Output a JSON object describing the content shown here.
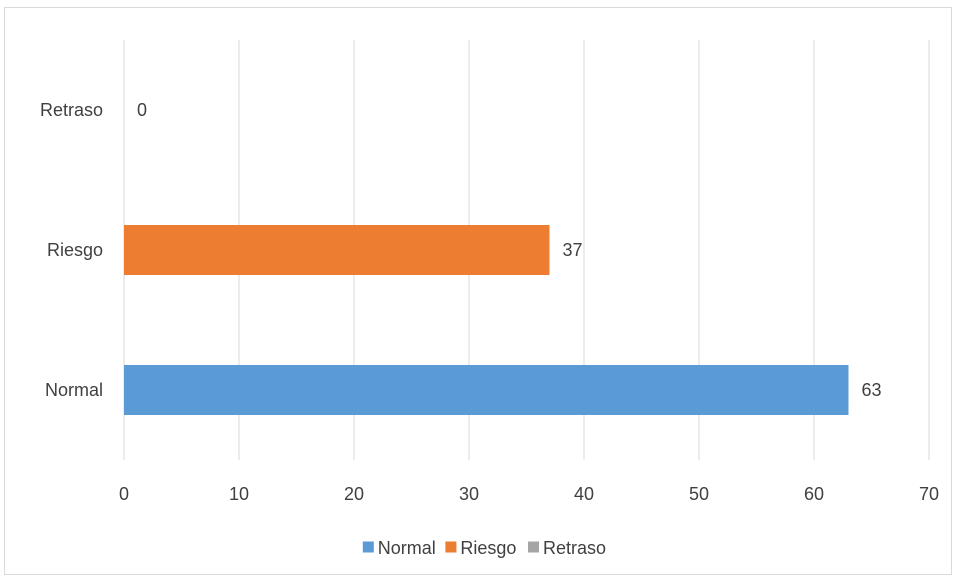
{
  "chart_data": {
    "type": "bar",
    "orientation": "horizontal",
    "categories": [
      "Normal",
      "Riesgo",
      "Retraso"
    ],
    "values": [
      63,
      37,
      0
    ],
    "value_labels": [
      "63",
      "37",
      "0"
    ],
    "series_colors": [
      "#5b9bd5",
      "#ed7d31",
      "#a5a5a5"
    ],
    "xlim": [
      0,
      70
    ],
    "x_ticks": [
      0,
      10,
      20,
      30,
      40,
      50,
      60,
      70
    ],
    "x_tick_labels": [
      "0",
      "10",
      "20",
      "30",
      "40",
      "50",
      "60",
      "70"
    ],
    "grid": true,
    "legend_position": "bottom",
    "legend": [
      {
        "label": "Normal",
        "color": "#5b9bd5"
      },
      {
        "label": "Riesgo",
        "color": "#ed7d31"
      },
      {
        "label": "Retraso",
        "color": "#a5a5a5"
      }
    ],
    "title": "",
    "xlabel": "",
    "ylabel": ""
  },
  "colors": {
    "gridline": "#d9d9d9",
    "text": "#404040",
    "border": "#d9d9d9"
  }
}
